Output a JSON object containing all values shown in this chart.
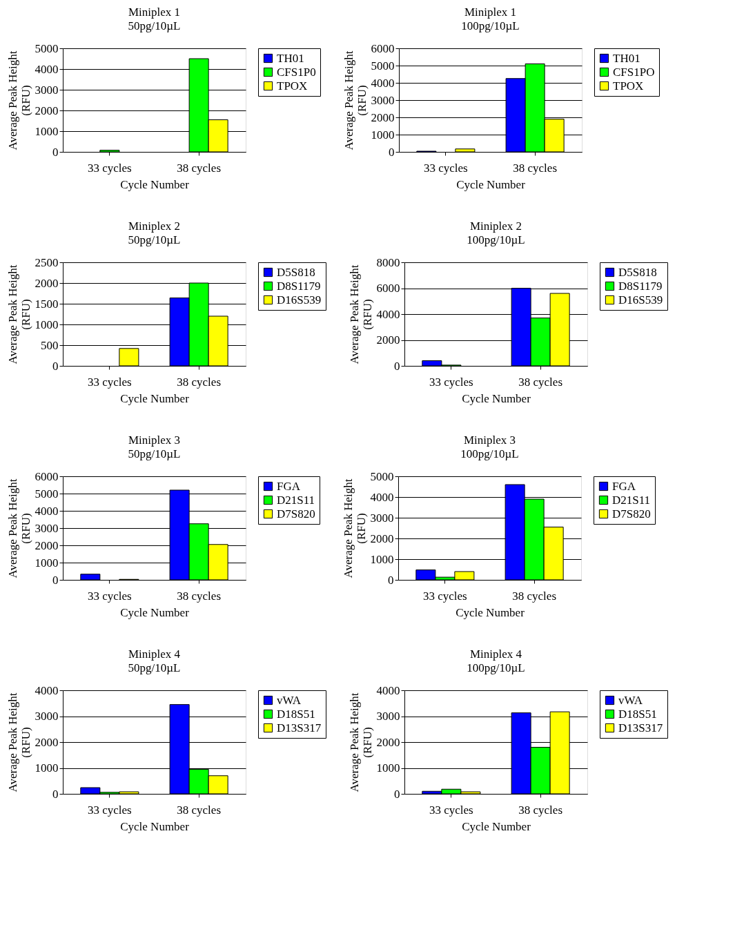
{
  "chart_data": [
    {
      "type": "bar",
      "title": "Miniplex 1",
      "subtitle": "50pg/10µL",
      "xlabel": "Cycle Number",
      "ylabel": "Average Peak Height\n(RFU)",
      "categories": [
        "33 cycles",
        "38 cycles"
      ],
      "ylim": [
        0,
        5000
      ],
      "yticks": [
        0,
        1000,
        2000,
        3000,
        4000,
        5000
      ],
      "grid": "y",
      "legend": "right",
      "series": [
        {
          "name": "TH01",
          "color": "#0000ff",
          "values": [
            null,
            null
          ]
        },
        {
          "name": "CFS1P0",
          "color": "#00ff00",
          "values": [
            80,
            4500
          ]
        },
        {
          "name": "TPOX",
          "color": "#ffff00",
          "values": [
            null,
            1550
          ]
        }
      ]
    },
    {
      "type": "bar",
      "title": "Miniplex 1",
      "subtitle": "100pg/10µL",
      "xlabel": "Cycle Number",
      "ylabel": "Average Peak Height\n(RFU)",
      "categories": [
        "33 cycles",
        "38 cycles"
      ],
      "ylim": [
        0,
        6000
      ],
      "yticks": [
        0,
        1000,
        2000,
        3000,
        4000,
        5000,
        6000
      ],
      "grid": "y",
      "legend": "right",
      "series": [
        {
          "name": "TH01",
          "color": "#0000ff",
          "values": [
            40,
            4250
          ]
        },
        {
          "name": "CFS1PO",
          "color": "#00ff00",
          "values": [
            null,
            5100
          ]
        },
        {
          "name": "TPOX",
          "color": "#ffff00",
          "values": [
            170,
            1900
          ]
        }
      ]
    },
    {
      "type": "bar",
      "title": "Miniplex 2",
      "subtitle": "50pg/10µL",
      "xlabel": "Cycle Number",
      "ylabel": "Average Peak Height\n(RFU)",
      "categories": [
        "33 cycles",
        "38 cycles"
      ],
      "ylim": [
        0,
        2500
      ],
      "yticks": [
        0,
        500,
        1000,
        1500,
        2000,
        2500
      ],
      "grid": "y",
      "legend": "right",
      "series": [
        {
          "name": "D5S818",
          "color": "#0000ff",
          "values": [
            null,
            1640
          ]
        },
        {
          "name": "D8S1179",
          "color": "#00ff00",
          "values": [
            null,
            2000
          ]
        },
        {
          "name": "D16S539",
          "color": "#ffff00",
          "values": [
            420,
            1200
          ]
        }
      ]
    },
    {
      "type": "bar",
      "title": "Miniplex 2",
      "subtitle": "100pg/10µL",
      "xlabel": "Cycle Number",
      "ylabel": "Average Peak Height\n(RFU)",
      "categories": [
        "33 cycles",
        "38 cycles"
      ],
      "ylim": [
        0,
        8000
      ],
      "yticks": [
        0,
        2000,
        4000,
        6000,
        8000
      ],
      "grid": "y",
      "legend": "right",
      "series": [
        {
          "name": "D5S818",
          "color": "#0000ff",
          "values": [
            400,
            6000
          ]
        },
        {
          "name": "D8S1179",
          "color": "#00ff00",
          "values": [
            60,
            3700
          ]
        },
        {
          "name": "D16S539",
          "color": "#ffff00",
          "values": [
            null,
            5600
          ]
        }
      ]
    },
    {
      "type": "bar",
      "title": "Miniplex 3",
      "subtitle": "50pg/10µL",
      "xlabel": "Cycle Number",
      "ylabel": "Average Peak Height\n(RFU)",
      "categories": [
        "33 cycles",
        "38 cycles"
      ],
      "ylim": [
        0,
        6000
      ],
      "yticks": [
        0,
        1000,
        2000,
        3000,
        4000,
        5000,
        6000
      ],
      "grid": "y",
      "legend": "right",
      "series": [
        {
          "name": "FGA",
          "color": "#0000ff",
          "values": [
            330,
            5200
          ]
        },
        {
          "name": "D21S11",
          "color": "#00ff00",
          "values": [
            null,
            3250
          ]
        },
        {
          "name": "D7S820",
          "color": "#ffff00",
          "values": [
            30,
            2050
          ]
        }
      ]
    },
    {
      "type": "bar",
      "title": "Miniplex 3",
      "subtitle": "100pg/10µL",
      "xlabel": "Cycle Number",
      "ylabel": "Average Peak Height\n(RFU)",
      "categories": [
        "33 cycles",
        "38 cycles"
      ],
      "ylim": [
        0,
        5000
      ],
      "yticks": [
        0,
        1000,
        2000,
        3000,
        4000,
        5000
      ],
      "grid": "y",
      "legend": "right",
      "series": [
        {
          "name": "FGA",
          "color": "#0000ff",
          "values": [
            480,
            4600
          ]
        },
        {
          "name": "D21S11",
          "color": "#00ff00",
          "values": [
            130,
            3900
          ]
        },
        {
          "name": "D7S820",
          "color": "#ffff00",
          "values": [
            400,
            2550
          ]
        }
      ]
    },
    {
      "type": "bar",
      "title": "Miniplex 4",
      "subtitle": "50pg/10µL",
      "xlabel": "Cycle Number",
      "ylabel": "Average Peak Height\n(RFU)",
      "categories": [
        "33 cycles",
        "38 cycles"
      ],
      "ylim": [
        0,
        4000
      ],
      "yticks": [
        0,
        1000,
        2000,
        3000,
        4000
      ],
      "grid": "y",
      "legend": "right",
      "series": [
        {
          "name": "vWA",
          "color": "#0000ff",
          "values": [
            240,
            3450
          ]
        },
        {
          "name": "D18S51",
          "color": "#00ff00",
          "values": [
            60,
            950
          ]
        },
        {
          "name": "D13S317",
          "color": "#ffff00",
          "values": [
            80,
            700
          ]
        }
      ]
    },
    {
      "type": "bar",
      "title": "Miniplex 4",
      "subtitle": "100pg/10µL",
      "xlabel": "Cycle Number",
      "ylabel": "Average Peak Height\n(RFU)",
      "categories": [
        "33 cycles",
        "38 cycles"
      ],
      "ylim": [
        0,
        4000
      ],
      "yticks": [
        0,
        1000,
        2000,
        3000,
        4000
      ],
      "grid": "y",
      "legend": "right",
      "series": [
        {
          "name": "vWA",
          "color": "#0000ff",
          "values": [
            100,
            3130
          ]
        },
        {
          "name": "D18S51",
          "color": "#00ff00",
          "values": [
            180,
            1800
          ]
        },
        {
          "name": "D13S317",
          "color": "#ffff00",
          "values": [
            80,
            3170
          ]
        }
      ]
    }
  ]
}
